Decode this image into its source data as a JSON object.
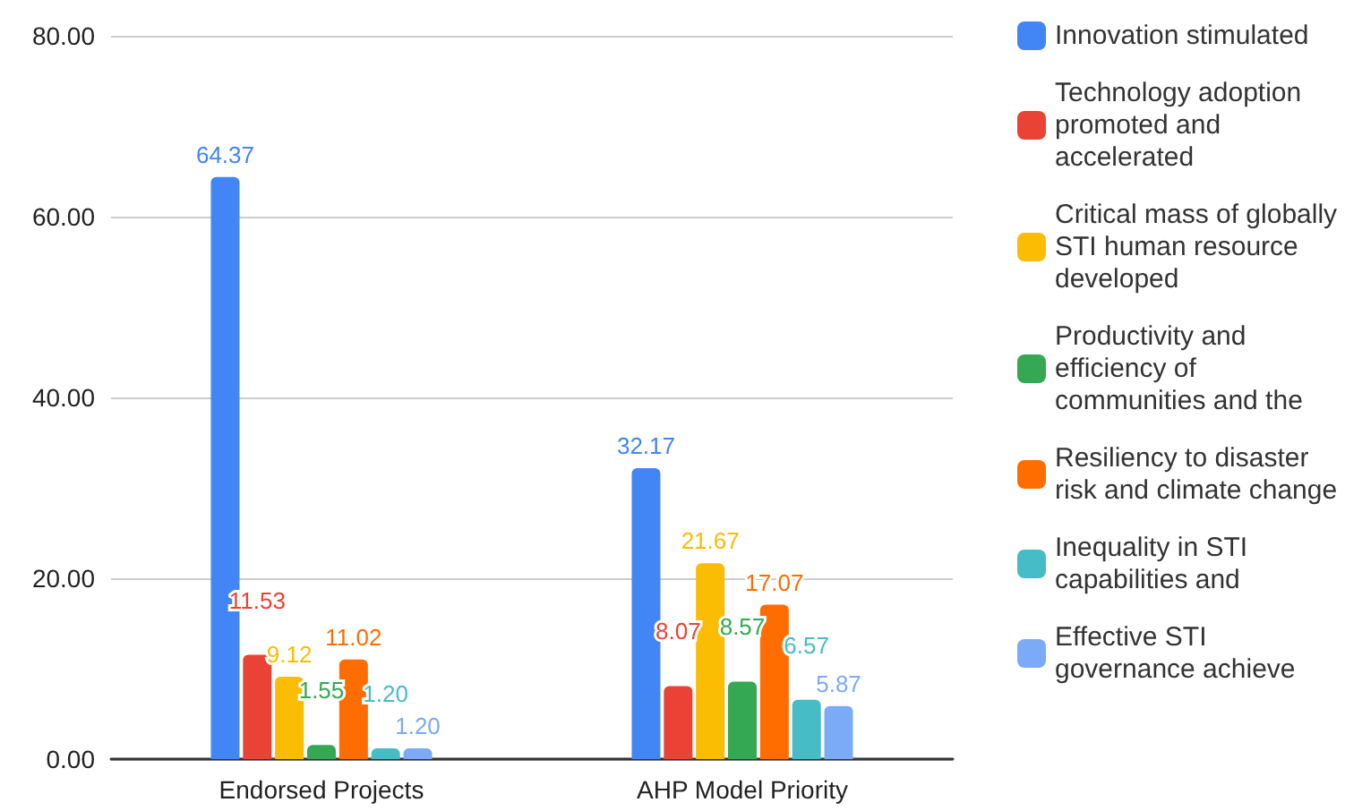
{
  "chart_data": {
    "type": "bar",
    "categories": [
      "Endorsed Projects",
      "AHP Model Priority"
    ],
    "series": [
      {
        "name": "Innovation stimulated",
        "color": "#4285f4",
        "values": [
          64.37,
          32.17
        ],
        "value_labels": [
          "64.37",
          "32.17"
        ]
      },
      {
        "name": "Technology adoption promoted and accelerated",
        "color": "#ea4335",
        "values": [
          11.53,
          8.07
        ],
        "value_labels": [
          "11.53",
          "8.07"
        ]
      },
      {
        "name": "Critical mass of globally STI human resource developed",
        "color": "#fbbc04",
        "values": [
          9.12,
          21.67
        ],
        "value_labels": [
          "9.12",
          "21.67"
        ]
      },
      {
        "name": "Productivity and efficiency of communities and the",
        "color": "#34a853",
        "values": [
          1.55,
          8.57
        ],
        "value_labels": [
          "1.55",
          "8.57"
        ]
      },
      {
        "name": "Resiliency to disaster risk and climate change",
        "color": "#ff6d01",
        "values": [
          11.02,
          17.07
        ],
        "value_labels": [
          "11.02",
          "17.07"
        ]
      },
      {
        "name": "Inequality in STI capabilities and",
        "color": "#46bdc6",
        "values": [
          1.2,
          6.57
        ],
        "value_labels": [
          "1.20",
          "6.57"
        ]
      },
      {
        "name": "Effective STI governance achieve",
        "color": "#7baaf7",
        "values": [
          1.2,
          5.87
        ],
        "value_labels": [
          "1.20",
          "5.87"
        ]
      }
    ],
    "ylim": [
      0,
      80
    ],
    "yticks": [
      {
        "value": 0,
        "label": "0.00"
      },
      {
        "value": 20,
        "label": "20.00"
      },
      {
        "value": 40,
        "label": "40.00"
      },
      {
        "value": 60,
        "label": "60.00"
      },
      {
        "value": 80,
        "label": "80.00"
      }
    ],
    "grid": "y",
    "legend": "right"
  }
}
